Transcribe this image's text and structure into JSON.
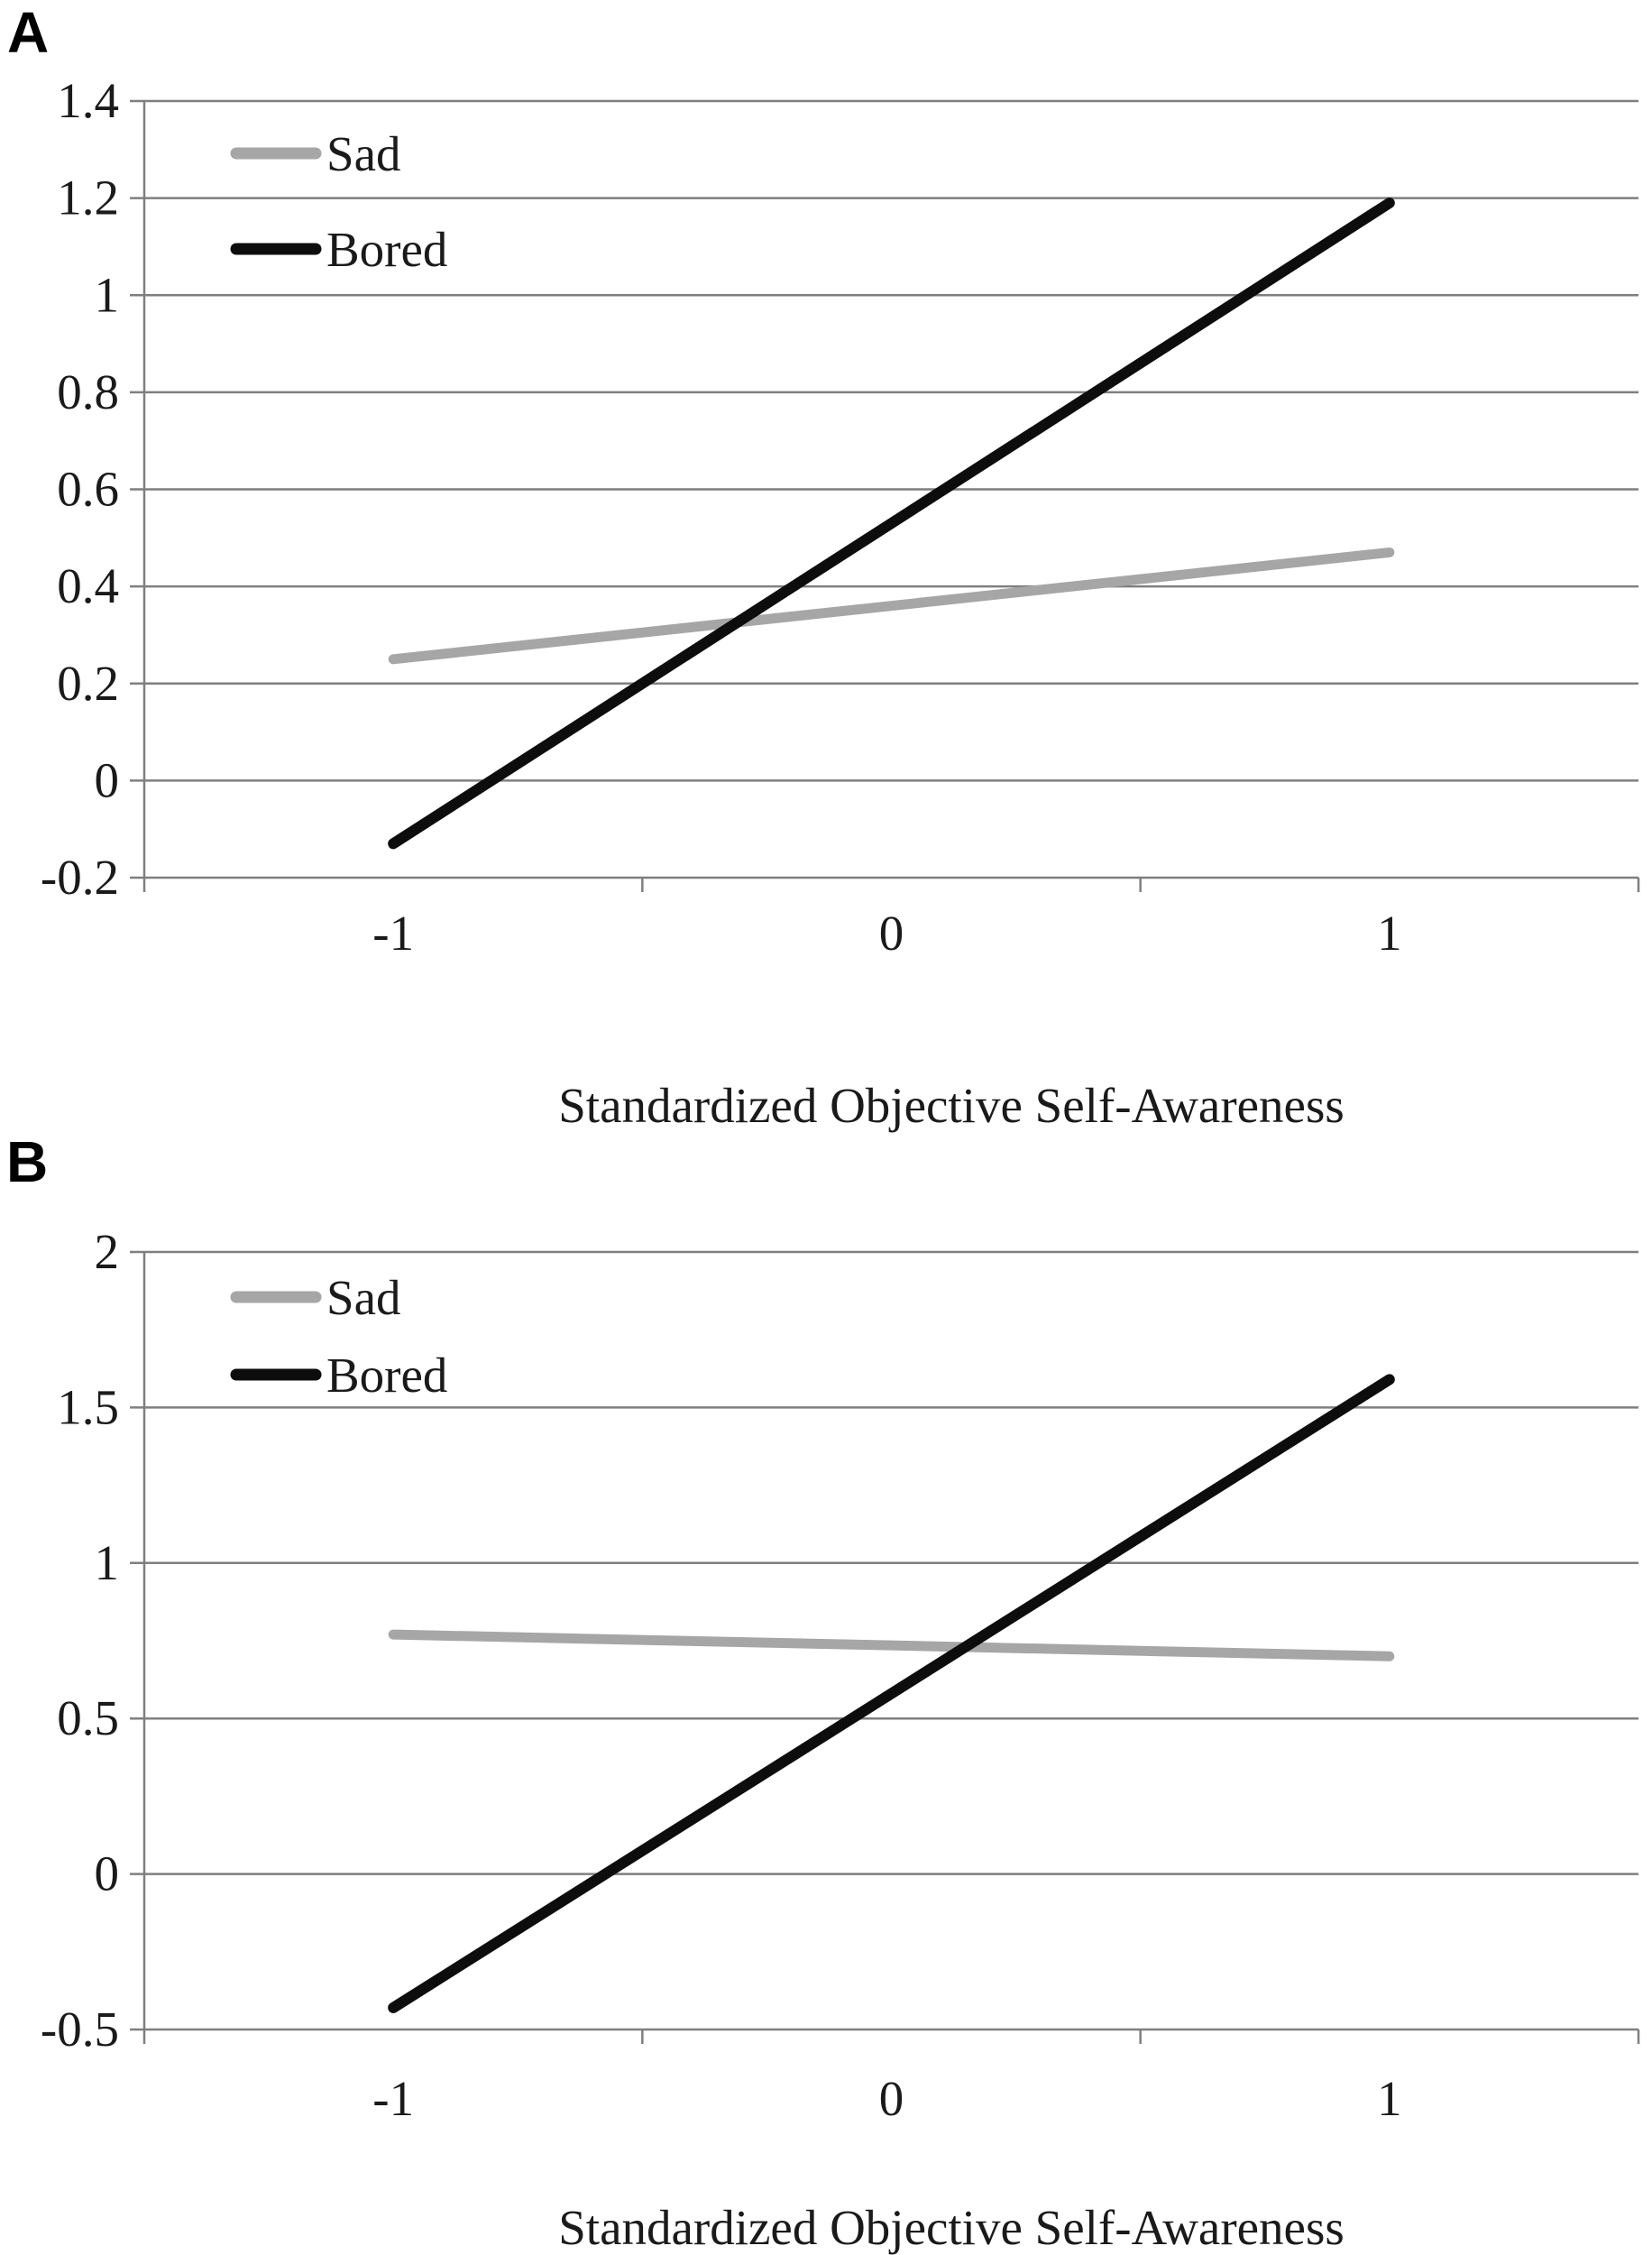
{
  "figure": {
    "background": "#ffffff",
    "text_color": "#1a1a1a",
    "panel_labels": [
      "A",
      "B"
    ]
  },
  "chart_data": [
    {
      "type": "line",
      "panel_label": "A",
      "title": "",
      "xlabel": "Standardized Objective Self-Awareness",
      "ylabel": "",
      "x": [
        -1,
        1
      ],
      "xticks": [
        -1,
        0,
        1
      ],
      "xtick_labels": [
        "-1",
        "0",
        "1"
      ],
      "ylim": [
        -0.2,
        1.4
      ],
      "yticks": [
        1.4,
        1.2,
        1.0,
        0.8,
        0.6,
        0.4,
        0.2,
        0.0,
        -0.2
      ],
      "ytick_labels": [
        "1.4",
        "1.2",
        "1",
        "0.8",
        "0.6",
        "0.4",
        "0.2",
        "0",
        "-0.2"
      ],
      "grid": true,
      "grid_color": "#7f7f7f",
      "legend_position": "top-left",
      "series": [
        {
          "name": "Sad",
          "color": "#a6a6a6",
          "stroke_width": 11,
          "values": [
            0.25,
            0.47
          ]
        },
        {
          "name": "Bored",
          "color": "#0d0d0d",
          "stroke_width": 12,
          "values": [
            -0.13,
            1.19
          ]
        }
      ]
    },
    {
      "type": "line",
      "panel_label": "B",
      "title": "",
      "xlabel": "Standardized Objective Self-Awareness",
      "ylabel": "",
      "x": [
        -1,
        1
      ],
      "xticks": [
        -1,
        0,
        1
      ],
      "xtick_labels": [
        "-1",
        "0",
        "1"
      ],
      "ylim": [
        -0.5,
        2.0
      ],
      "yticks": [
        2.0,
        1.5,
        1.0,
        0.5,
        0.0,
        -0.5
      ],
      "ytick_labels": [
        "2",
        "1.5",
        "1",
        "0.5",
        "0",
        "-0.5"
      ],
      "grid": true,
      "grid_color": "#7f7f7f",
      "legend_position": "top-left",
      "series": [
        {
          "name": "Sad",
          "color": "#a6a6a6",
          "stroke_width": 11,
          "values": [
            0.77,
            0.7
          ]
        },
        {
          "name": "Bored",
          "color": "#0d0d0d",
          "stroke_width": 12,
          "values": [
            -0.43,
            1.59
          ]
        }
      ]
    }
  ]
}
